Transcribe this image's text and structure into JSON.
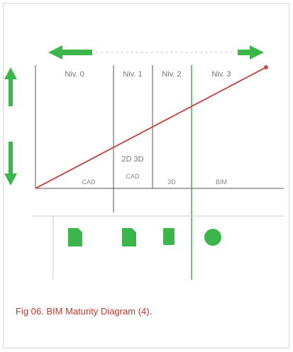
{
  "figure": {
    "levels": [
      {
        "label": "Niv. 0",
        "technology": "CAD"
      },
      {
        "label": "Niv. 1",
        "technology": "CAD"
      },
      {
        "label": "Niv. 2",
        "technology": "3D"
      },
      {
        "label": "Niv. 3",
        "technology": "BIM"
      }
    ],
    "center_label": "2D 3D",
    "caption": "Fig 06. BIM Maturity Diagram (4)."
  }
}
